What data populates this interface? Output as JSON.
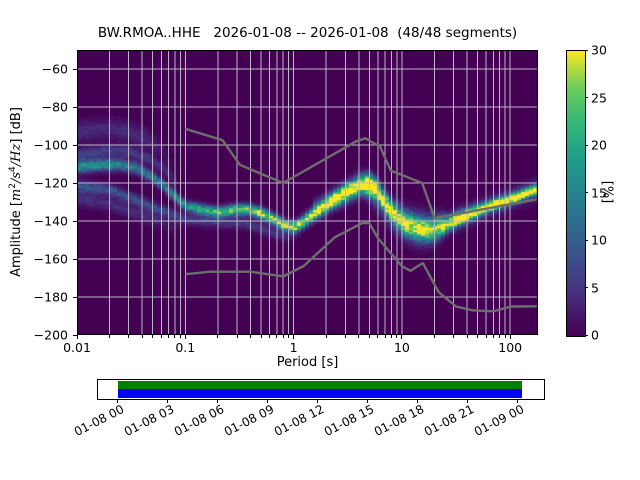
{
  "title": "BW.RMOA..HHE   2026-01-08 -- 2026-01-08  (48/48 segments)",
  "axes": {
    "xlabel": "Period [s]",
    "ylabel_parts": {
      "pre": "Amplitude [",
      "m": "m",
      "m_exp": "2",
      "s": "/s",
      "s_exp": "4",
      "hz": "/Hz",
      "post": "] [dB]"
    },
    "xticks": [
      {
        "v": 0.01,
        "label": "0.01"
      },
      {
        "v": 0.1,
        "label": "0.1"
      },
      {
        "v": 1,
        "label": "1"
      },
      {
        "v": 10,
        "label": "10"
      },
      {
        "v": 100,
        "label": "100"
      }
    ],
    "yticks": [
      {
        "v": -60,
        "label": "−60"
      },
      {
        "v": -80,
        "label": "−80"
      },
      {
        "v": -100,
        "label": "−100"
      },
      {
        "v": -120,
        "label": "−120"
      },
      {
        "v": -140,
        "label": "−140"
      },
      {
        "v": -160,
        "label": "−160"
      },
      {
        "v": -180,
        "label": "−180"
      },
      {
        "v": -200,
        "label": "−200"
      }
    ]
  },
  "colorbar": {
    "label": "[%]",
    "range": [
      0,
      30
    ],
    "ticks": [
      0,
      5,
      10,
      15,
      20,
      25,
      30
    ]
  },
  "colors": {
    "background": "#ffffff",
    "plot_bg": "#440154",
    "grid": "#bcb8c8",
    "noise_model": "#6e6e6e",
    "timeline_green": "#008000",
    "timeline_blue": "#0000ff",
    "viridis_stops": [
      [
        0,
        "#440154"
      ],
      [
        0.125,
        "#482878"
      ],
      [
        0.25,
        "#3e4a89"
      ],
      [
        0.375,
        "#31688e"
      ],
      [
        0.5,
        "#26828e"
      ],
      [
        0.625,
        "#1f9e89"
      ],
      [
        0.75,
        "#35b779"
      ],
      [
        0.875,
        "#6dcd59"
      ],
      [
        1,
        "#fde725"
      ]
    ]
  },
  "chart_data": {
    "type": "heatmap",
    "title": "BW.RMOA..HHE   2026-01-08 -- 2026-01-08  (48/48 segments)",
    "xlabel": "Period [s]",
    "ylabel": "Amplitude [m^2/s^4/Hz] [dB]",
    "xscale": "log",
    "xlim": [
      0.01,
      180
    ],
    "ylim": [
      -200,
      -50
    ],
    "colorbar_label": "[%]",
    "colorbar_range": [
      0,
      30
    ],
    "segments_used": "48/48",
    "ppsd_mode": {
      "periods": [
        0.01,
        0.025,
        0.05,
        0.1,
        0.2,
        0.4,
        0.8,
        1.0,
        1.6,
        3.0,
        4.5,
        8.0,
        13,
        17,
        30,
        60,
        120,
        175
      ],
      "db": [
        -111.5,
        -110.5,
        -117,
        -132,
        -135.5,
        -134,
        -142,
        -143.5,
        -135.5,
        -126,
        -121,
        -135,
        -143.5,
        -145,
        -140,
        -133,
        -127,
        -123.5
      ]
    },
    "bands": [
      {
        "name": "main-mode",
        "pts": [
          [
            0.01,
            -111.5
          ],
          [
            0.016,
            -110.5
          ],
          [
            0.025,
            -110.5
          ],
          [
            0.035,
            -112
          ],
          [
            0.05,
            -117
          ],
          [
            0.065,
            -122
          ],
          [
            0.08,
            -127
          ],
          [
            0.1,
            -132
          ],
          [
            0.14,
            -134
          ],
          [
            0.2,
            -135.5
          ],
          [
            0.28,
            -134.3
          ],
          [
            0.38,
            -134
          ],
          [
            0.5,
            -136
          ],
          [
            0.65,
            -139
          ],
          [
            0.8,
            -142
          ],
          [
            1.0,
            -143.5
          ],
          [
            1.2,
            -141
          ],
          [
            1.6,
            -135.5
          ],
          [
            2.2,
            -130
          ],
          [
            3.0,
            -126
          ],
          [
            4.0,
            -122
          ],
          [
            5.0,
            -121
          ],
          [
            6.0,
            -124.5
          ],
          [
            7.0,
            -130
          ],
          [
            8.0,
            -135
          ],
          [
            10,
            -140.5
          ],
          [
            13,
            -143.5
          ],
          [
            17,
            -145
          ],
          [
            22,
            -143.5
          ],
          [
            30,
            -140
          ],
          [
            42,
            -136.5
          ],
          [
            60,
            -133
          ],
          [
            85,
            -130
          ],
          [
            120,
            -127
          ],
          [
            175,
            -123.5
          ]
        ],
        "sigma": [
          [
            0.01,
            2.2
          ],
          [
            0.1,
            1.8
          ],
          [
            1,
            2
          ],
          [
            3,
            3
          ],
          [
            5,
            3.2
          ],
          [
            8,
            3.5
          ],
          [
            12,
            4
          ],
          [
            20,
            4
          ],
          [
            30,
            2.5
          ],
          [
            60,
            1.8
          ],
          [
            175,
            1.6
          ]
        ],
        "amp": [
          [
            0.01,
            0.55
          ],
          [
            0.05,
            0.45
          ],
          [
            0.1,
            0.55
          ],
          [
            0.15,
            0.7
          ],
          [
            0.3,
            0.85
          ],
          [
            0.6,
            0.9
          ],
          [
            1,
            0.95
          ],
          [
            3,
            0.9
          ],
          [
            5,
            0.95
          ],
          [
            8,
            0.75
          ],
          [
            12,
            0.7
          ],
          [
            20,
            0.75
          ],
          [
            30,
            0.9
          ],
          [
            50,
            1.0
          ],
          [
            175,
            1.0
          ]
        ]
      },
      {
        "name": "upper-faint-cloud",
        "pts": [
          [
            0.01,
            -93
          ],
          [
            0.02,
            -91.5
          ],
          [
            0.03,
            -93
          ],
          [
            0.045,
            -97
          ],
          [
            0.06,
            -103
          ],
          [
            0.08,
            -112
          ]
        ],
        "sigma": 3.5,
        "amp": [
          [
            0.01,
            0.13
          ],
          [
            0.03,
            0.13
          ],
          [
            0.05,
            0.1
          ],
          [
            0.08,
            0
          ]
        ]
      },
      {
        "name": "upper-band",
        "pts": [
          [
            0.01,
            -105
          ],
          [
            0.02,
            -103
          ],
          [
            0.03,
            -103.5
          ],
          [
            0.045,
            -107
          ],
          [
            0.065,
            -113
          ],
          [
            0.09,
            -122
          ]
        ],
        "sigma": 2.2,
        "amp": [
          [
            0.01,
            0.22
          ],
          [
            0.04,
            0.18
          ],
          [
            0.07,
            0.12
          ],
          [
            0.09,
            0
          ]
        ]
      },
      {
        "name": "lower-band-1",
        "pts": [
          [
            0.01,
            -121.5
          ],
          [
            0.02,
            -123.5
          ],
          [
            0.035,
            -129
          ],
          [
            0.06,
            -134.5
          ],
          [
            0.1,
            -139
          ],
          [
            0.2,
            -140.5
          ],
          [
            0.35,
            -141
          ],
          [
            0.6,
            -145.5
          ],
          [
            0.9,
            -148.5
          ],
          [
            1.2,
            -146
          ]
        ],
        "sigma": 2,
        "amp": [
          [
            0.01,
            0.3
          ],
          [
            0.05,
            0.25
          ],
          [
            0.1,
            0.2
          ],
          [
            0.3,
            0.18
          ],
          [
            0.7,
            0.15
          ],
          [
            1.2,
            0
          ]
        ]
      },
      {
        "name": "lower-band-2",
        "pts": [
          [
            0.01,
            -128
          ],
          [
            0.02,
            -131
          ],
          [
            0.04,
            -137
          ],
          [
            0.07,
            -142
          ],
          [
            0.1,
            -145
          ]
        ],
        "sigma": 2.5,
        "amp": [
          [
            0.01,
            0.15
          ],
          [
            0.05,
            0.12
          ],
          [
            0.1,
            0
          ]
        ]
      },
      {
        "name": "trough-spread",
        "pts": [
          [
            4.5,
            -122
          ],
          [
            6,
            -128
          ],
          [
            8,
            -136
          ],
          [
            11,
            -142
          ],
          [
            15,
            -144
          ],
          [
            20,
            -144
          ],
          [
            26,
            -141
          ]
        ],
        "sigma": [
          [
            4.5,
            4
          ],
          [
            8,
            5
          ],
          [
            15,
            5.5
          ],
          [
            26,
            4
          ]
        ],
        "amp": [
          [
            4.5,
            0.25
          ],
          [
            8,
            0.3
          ],
          [
            15,
            0.3
          ],
          [
            26,
            0.15
          ]
        ]
      },
      {
        "name": "microseism-peak-spread",
        "pts": [
          [
            1.5,
            -134
          ],
          [
            2.5,
            -127
          ],
          [
            4,
            -119
          ],
          [
            5,
            -118
          ],
          [
            6,
            -122
          ]
        ],
        "sigma": 3,
        "amp": [
          [
            1.5,
            0.2
          ],
          [
            3,
            0.3
          ],
          [
            5,
            0.3
          ],
          [
            6,
            0.2
          ]
        ]
      },
      {
        "name": "right-fringe",
        "pts": [
          [
            30,
            -140
          ],
          [
            60,
            -133
          ],
          [
            120,
            -127
          ],
          [
            175,
            -123.5
          ]
        ],
        "sigma": 3.5,
        "amp": 0.22
      }
    ],
    "noise_models": {
      "high_nhnm": [
        [
          0.1,
          -91.5
        ],
        [
          0.22,
          -97.4
        ],
        [
          0.32,
          -110.5
        ],
        [
          0.8,
          -120
        ],
        [
          3.8,
          -98
        ],
        [
          4.6,
          -96.5
        ],
        [
          6.3,
          -101
        ],
        [
          7.9,
          -113.5
        ],
        [
          15.4,
          -120
        ],
        [
          20,
          -138.5
        ],
        [
          180,
          -128.5
        ]
      ],
      "low_nlnm": [
        [
          0.1,
          -168
        ],
        [
          0.17,
          -166.7
        ],
        [
          0.4,
          -166.7
        ],
        [
          0.8,
          -169.2
        ],
        [
          1.24,
          -163.7
        ],
        [
          2.4,
          -148.6
        ],
        [
          4.3,
          -141.1
        ],
        [
          5.0,
          -141.1
        ],
        [
          6.0,
          -149
        ],
        [
          10,
          -163.8
        ],
        [
          12,
          -166.2
        ],
        [
          15.6,
          -162.1
        ],
        [
          21.9,
          -177.5
        ],
        [
          31.6,
          -185
        ],
        [
          45,
          -187
        ],
        [
          70,
          -187.5
        ],
        [
          101,
          -185
        ],
        [
          180,
          -184.9
        ]
      ]
    },
    "timeline": {
      "tick_labels": [
        "01-08 00",
        "01-08 03",
        "01-08 06",
        "01-08 09",
        "01-08 12",
        "01-08 15",
        "01-08 18",
        "01-08 21",
        "01-09 00"
      ],
      "coverage": {
        "start_frac": 0.045,
        "end_frac": 0.951
      },
      "bar_colors": [
        "#008000",
        "#0000ff"
      ]
    }
  }
}
